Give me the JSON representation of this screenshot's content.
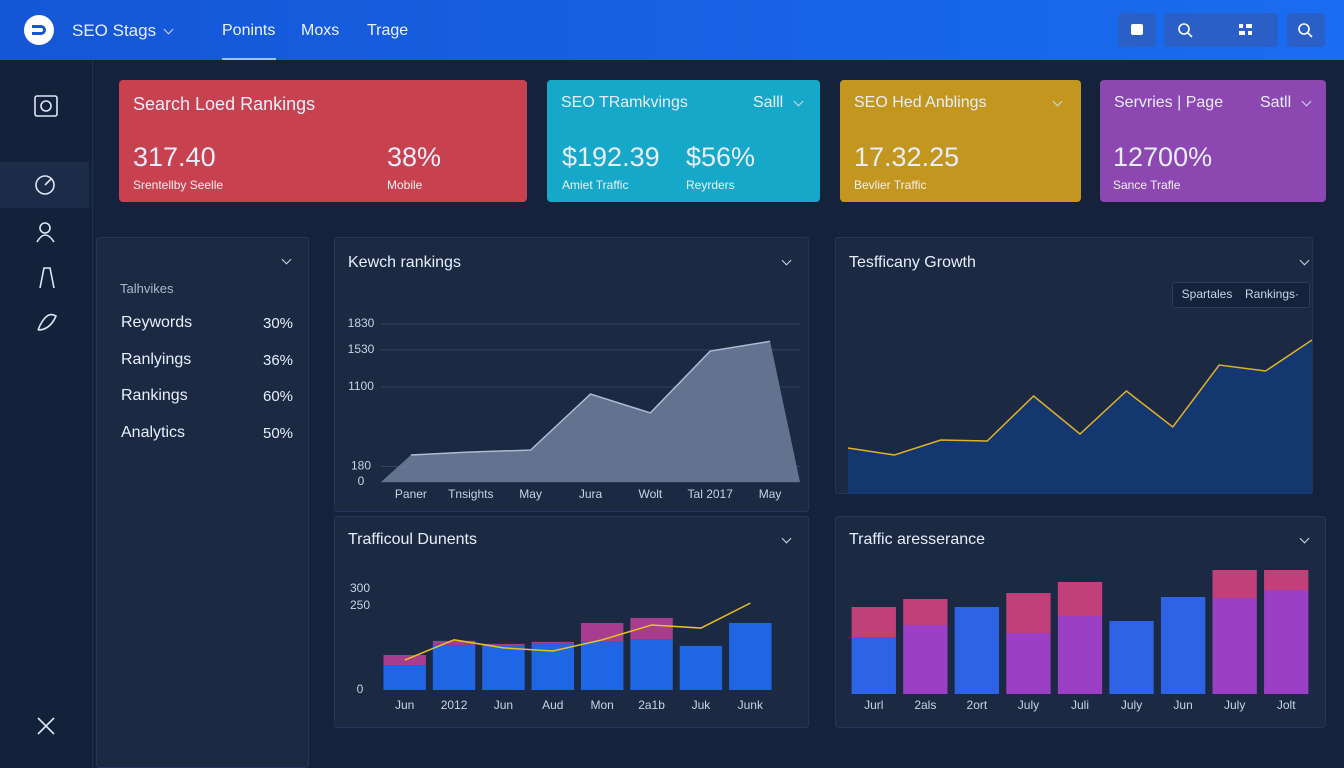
{
  "header": {
    "brand": "SEO Stags",
    "nav": [
      "Ponints",
      "Moxs",
      "Trage"
    ]
  },
  "kpis": [
    {
      "title": "Search Loed Rankings",
      "stats": [
        {
          "value": "317.40",
          "label": "Srentellby Seelle"
        },
        {
          "value": "38%",
          "label": "Mobile"
        }
      ]
    },
    {
      "title": "SEO TRamkvings",
      "menu": "Salll",
      "stats": [
        {
          "value": "$192.39",
          "label": "Amiet Traffic"
        },
        {
          "value": "$56%",
          "label": "Reyrders"
        }
      ]
    },
    {
      "title": "SEO Hed Anblings",
      "stats": [
        {
          "value": "17.32.25",
          "label": "Bevlier Traffic"
        }
      ]
    },
    {
      "title": "Servries | Page",
      "menu": "Satll",
      "stats": [
        {
          "value": "12700%",
          "label": "Sance Trafle"
        }
      ]
    }
  ],
  "panel": {
    "title": "Talhvikes",
    "rows": [
      [
        "Reywords",
        "30%"
      ],
      [
        "Ranlyings",
        "36%"
      ],
      [
        "Rankings",
        "60%"
      ],
      [
        "Analytics",
        "50%"
      ]
    ]
  },
  "chart_data": [
    {
      "type": "area",
      "title": "Kewch rankings",
      "categories": [
        "Paner",
        "Tnsights",
        "May",
        "Jura",
        "Wolt",
        "Tal 2017",
        "May"
      ],
      "values": [
        313,
        347,
        370,
        1019,
        800,
        1517,
        1630
      ],
      "ylim": [
        0,
        1900
      ],
      "yticks": [
        0,
        180,
        1100,
        1530,
        1830
      ],
      "grid": true,
      "color": "#6f7f9c",
      "line_color": "#aebbd4"
    },
    {
      "type": "area",
      "title": "Tesfficany Growth",
      "legend": [
        "Spartales",
        "Rankings·"
      ],
      "values": [
        46,
        39,
        54,
        53,
        98,
        60,
        103,
        67,
        129,
        123,
        154
      ],
      "ylim": [
        0,
        160
      ],
      "color": "#133a78",
      "line_color": "#e0b12a"
    },
    {
      "type": "bar",
      "title": "Trafficoul Dunents",
      "categories": [
        "Jun",
        "2012",
        "Jun",
        "Aud",
        "Mon",
        "2a1b",
        "Juk",
        "Junk"
      ],
      "stacked": true,
      "ylim": [
        0,
        300
      ],
      "yticks": [
        0,
        250,
        300
      ],
      "series": [
        {
          "color": "#1f66e5",
          "values": [
            74,
            134,
            131,
            137,
            143,
            149,
            131,
            199
          ]
        },
        {
          "color": "#a83c8e",
          "values": [
            30,
            12,
            6,
            6,
            56,
            65,
            0,
            0
          ]
        },
        {
          "type": "line",
          "color": "#e8c21c",
          "values": [
            89,
            149,
            125,
            116,
            149,
            193,
            184,
            258
          ]
        }
      ]
    },
    {
      "type": "bar",
      "title": "Traffic aresserance",
      "categories": [
        "Jurl",
        "2als",
        "2ort",
        "July",
        "Juli",
        "July",
        "Jun",
        "July",
        "Jolt"
      ],
      "stacked": true,
      "ylim": [
        0,
        130
      ],
      "series": [
        {
          "color": "#2f63e6",
          "values": [
            57,
            null,
            87,
            null,
            null,
            73,
            97,
            null,
            null
          ]
        },
        {
          "color": "#9b40c4",
          "values": [
            null,
            69,
            null,
            61,
            78,
            null,
            null,
            96,
            104
          ]
        },
        {
          "color": "#c2407a",
          "values": [
            30,
            26,
            null,
            40,
            34,
            null,
            null,
            28,
            20
          ]
        }
      ]
    }
  ]
}
